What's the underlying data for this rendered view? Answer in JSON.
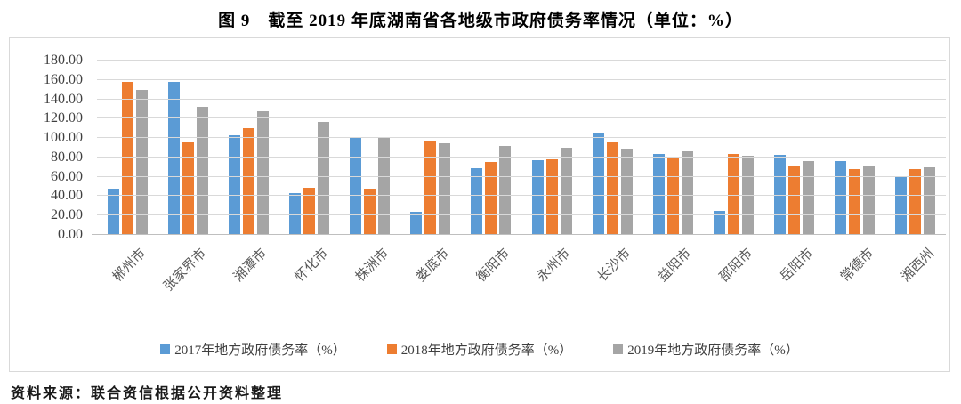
{
  "page": {
    "title": "图 9　截至 2019 年底湖南省各地级市政府债务率情况（单位：%）",
    "source": "资料来源：联合资信根据公开资料整理"
  },
  "colors": {
    "series_2017": "#5B9BD5",
    "series_2018": "#ED7D31",
    "series_2019": "#A5A5A5",
    "gridline": "#D9D9D9",
    "axis_text": "#3F3F3F",
    "x_label_text": "#595959",
    "box_border": "#D9D9D9"
  },
  "chart_data": {
    "type": "bar",
    "title": "图 9　截至 2019 年底湖南省各地级市政府债务率情况（单位：%）",
    "xlabel": "",
    "ylabel": "",
    "ylim": [
      0,
      180
    ],
    "ytick_step": 20,
    "ytick_labels": [
      "0.00",
      "20.00",
      "40.00",
      "60.00",
      "80.00",
      "100.00",
      "120.00",
      "140.00",
      "160.00",
      "180.00"
    ],
    "grid": true,
    "legend_position": "bottom",
    "categories": [
      "郴州市",
      "张家界市",
      "湘潭市",
      "怀化市",
      "株洲市",
      "娄底市",
      "衡阳市",
      "永州市",
      "长沙市",
      "益阳市",
      "邵阳市",
      "岳阳市",
      "常德市",
      "湘西州"
    ],
    "series": [
      {
        "name": "2017年地方政府债务率（%）",
        "color": "#5B9BD5",
        "values": [
          47,
          157,
          102,
          42,
          100,
          23,
          68,
          76,
          105,
          83,
          24,
          82,
          75,
          60
        ]
      },
      {
        "name": "2018年地方政府债务率（%）",
        "color": "#ED7D31",
        "values": [
          157,
          95,
          109,
          48,
          47,
          96,
          74,
          77,
          95,
          78,
          83,
          71,
          67,
          67
        ]
      },
      {
        "name": "2019年地方政府债务率（%）",
        "color": "#A5A5A5",
        "values": [
          149,
          131,
          127,
          116,
          100,
          94,
          91,
          89,
          87,
          85,
          81,
          75,
          70,
          69
        ]
      }
    ]
  }
}
